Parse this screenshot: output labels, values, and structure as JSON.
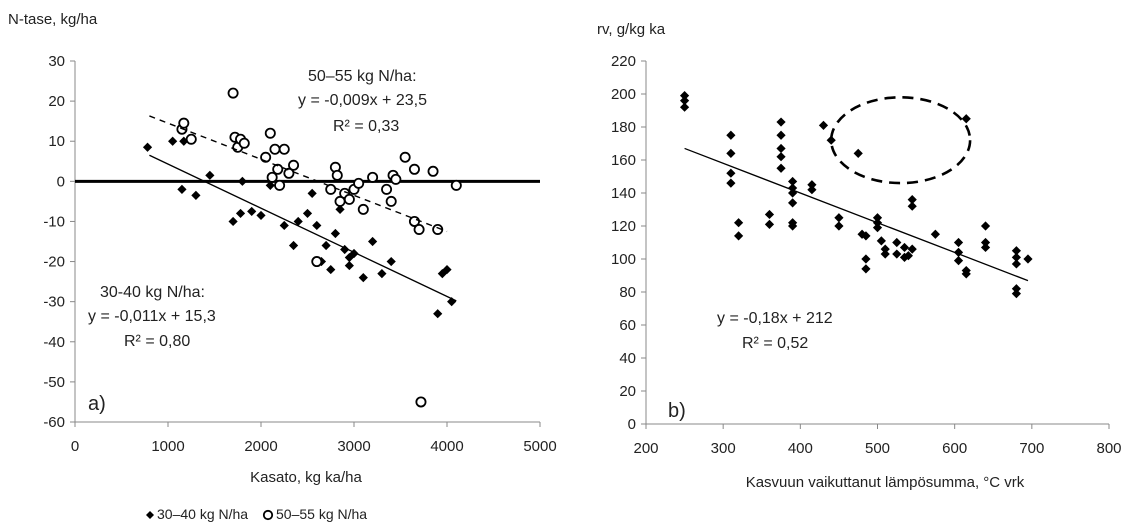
{
  "chart_data": [
    {
      "type": "scatter",
      "panel_label": "a)",
      "ylabel": "N-tase, kg/ha",
      "xlabel": "Kasato, kg ka/ha",
      "xlim": [
        0,
        5000
      ],
      "ylim": [
        -60,
        30
      ],
      "xticks": [
        0,
        1000,
        2000,
        3000,
        4000,
        5000
      ],
      "yticks": [
        -60,
        -50,
        -40,
        -30,
        -20,
        -10,
        0,
        10,
        20,
        30
      ],
      "grid": false,
      "legend": [
        {
          "marker": "diamond",
          "label": "30–40 kg N/ha"
        },
        {
          "marker": "circle",
          "label": "50–55 kg N/ha"
        }
      ],
      "legend_placement": "bottom",
      "zero_line": true,
      "series": [
        {
          "name": "30–40 kg N/ha",
          "marker": "diamond",
          "points": [
            [
              780,
              8.5
            ],
            [
              1050,
              10
            ],
            [
              1150,
              -2
            ],
            [
              1170,
              10
            ],
            [
              1300,
              -3.5
            ],
            [
              1450,
              1.5
            ],
            [
              1700,
              -10
            ],
            [
              1780,
              -8
            ],
            [
              1800,
              0
            ],
            [
              1900,
              -7.5
            ],
            [
              2000,
              -8.5
            ],
            [
              2100,
              -1
            ],
            [
              2250,
              -11
            ],
            [
              2350,
              -16
            ],
            [
              2400,
              -10
            ],
            [
              2500,
              -8
            ],
            [
              2550,
              -3
            ],
            [
              2600,
              -11
            ],
            [
              2650,
              -20
            ],
            [
              2700,
              -16
            ],
            [
              2750,
              -22
            ],
            [
              2800,
              -13
            ],
            [
              2850,
              -7
            ],
            [
              2900,
              -17
            ],
            [
              2950,
              -19
            ],
            [
              2950,
              -21
            ],
            [
              3000,
              -18
            ],
            [
              3100,
              -24
            ],
            [
              3200,
              -15
            ],
            [
              3300,
              -23
            ],
            [
              3400,
              -20
            ],
            [
              3900,
              -33
            ],
            [
              3950,
              -23
            ],
            [
              4000,
              -22
            ],
            [
              4050,
              -30
            ]
          ],
          "trendline": {
            "label": "30-40 kg N/ha:",
            "equation": "y = -0,011x + 15,3",
            "r2": "R² = 0,80",
            "slope": -0.011,
            "intercept": 15.3,
            "x_range": [
              800,
              4100
            ]
          }
        },
        {
          "name": "50–55 kg N/ha",
          "marker": "circle",
          "points": [
            [
              1150,
              13
            ],
            [
              1170,
              14.5
            ],
            [
              1250,
              10.5
            ],
            [
              1700,
              22
            ],
            [
              1720,
              11
            ],
            [
              1750,
              8.5
            ],
            [
              1780,
              10.5
            ],
            [
              1820,
              9.5
            ],
            [
              2050,
              6
            ],
            [
              2100,
              12
            ],
            [
              2120,
              1
            ],
            [
              2150,
              8
            ],
            [
              2180,
              3
            ],
            [
              2200,
              -1
            ],
            [
              2250,
              8
            ],
            [
              2300,
              2
            ],
            [
              2350,
              4
            ],
            [
              2600,
              -20
            ],
            [
              2750,
              -2
            ],
            [
              2800,
              3.5
            ],
            [
              2820,
              1.5
            ],
            [
              2850,
              -5
            ],
            [
              2900,
              -3
            ],
            [
              2950,
              -4.5
            ],
            [
              3000,
              -2
            ],
            [
              3050,
              -0.5
            ],
            [
              3100,
              -7
            ],
            [
              3200,
              1
            ],
            [
              3350,
              -2
            ],
            [
              3400,
              -5
            ],
            [
              3420,
              1.5
            ],
            [
              3450,
              0.5
            ],
            [
              3550,
              6
            ],
            [
              3650,
              3
            ],
            [
              3650,
              -10
            ],
            [
              3700,
              -12
            ],
            [
              3720,
              -55
            ],
            [
              3850,
              2.5
            ],
            [
              3900,
              -12
            ],
            [
              4100,
              -1
            ]
          ],
          "trendline": {
            "label": "50–55 kg N/ha:",
            "equation": "y = -0,009x + 23,5",
            "r2": "R² = 0,33",
            "slope": -0.009,
            "intercept": 23.5,
            "x_range": [
              800,
              4000
            ]
          }
        }
      ]
    },
    {
      "type": "scatter",
      "panel_label": "b)",
      "ylabel": "rv, g/kg ka",
      "xlabel": "Kasvuun vaikuttanut lämpösumma, °C vrk",
      "xlim": [
        200,
        800
      ],
      "ylim": [
        0,
        220
      ],
      "xticks": [
        200,
        300,
        400,
        500,
        600,
        700,
        800
      ],
      "yticks": [
        0,
        20,
        40,
        60,
        80,
        100,
        120,
        140,
        160,
        180,
        200,
        220
      ],
      "grid": false,
      "series": [
        {
          "marker": "diamond",
          "points": [
            [
              250,
              199
            ],
            [
              250,
              196
            ],
            [
              250,
              192
            ],
            [
              310,
              175
            ],
            [
              310,
              164
            ],
            [
              310,
              152
            ],
            [
              310,
              146
            ],
            [
              320,
              122
            ],
            [
              320,
              114
            ],
            [
              360,
              127
            ],
            [
              360,
              121
            ],
            [
              375,
              183
            ],
            [
              375,
              175
            ],
            [
              375,
              167
            ],
            [
              375,
              162
            ],
            [
              375,
              155
            ],
            [
              390,
              147
            ],
            [
              390,
              143
            ],
            [
              390,
              140
            ],
            [
              390,
              134
            ],
            [
              390,
              122
            ],
            [
              390,
              120
            ],
            [
              415,
              145
            ],
            [
              415,
              142
            ],
            [
              430,
              181
            ],
            [
              440,
              172
            ],
            [
              450,
              125
            ],
            [
              450,
              120
            ],
            [
              475,
              164
            ],
            [
              480,
              115
            ],
            [
              485,
              114
            ],
            [
              485,
              100
            ],
            [
              485,
              94
            ],
            [
              500,
              125
            ],
            [
              500,
              122
            ],
            [
              500,
              119
            ],
            [
              505,
              111
            ],
            [
              510,
              106
            ],
            [
              510,
              103
            ],
            [
              525,
              110
            ],
            [
              525,
              103
            ],
            [
              535,
              107
            ],
            [
              535,
              101
            ],
            [
              540,
              102
            ],
            [
              545,
              106
            ],
            [
              545,
              136
            ],
            [
              545,
              132
            ],
            [
              575,
              115
            ],
            [
              605,
              110
            ],
            [
              605,
              104
            ],
            [
              605,
              99
            ],
            [
              615,
              185
            ],
            [
              615,
              93
            ],
            [
              615,
              91
            ],
            [
              640,
              120
            ],
            [
              640,
              110
            ],
            [
              640,
              107
            ],
            [
              680,
              105
            ],
            [
              680,
              101
            ],
            [
              680,
              97
            ],
            [
              680,
              82
            ],
            [
              680,
              79
            ],
            [
              695,
              100
            ]
          ],
          "trendline": {
            "equation": "y = -0,18x + 212",
            "r2": "R² = 0,52",
            "slope": -0.18,
            "intercept": 212,
            "x_range": [
              250,
              695
            ]
          }
        }
      ],
      "highlight_ellipse": {
        "cx": 530,
        "cy": 172,
        "rx": 90,
        "ry": 26,
        "style": "dashed"
      }
    }
  ]
}
